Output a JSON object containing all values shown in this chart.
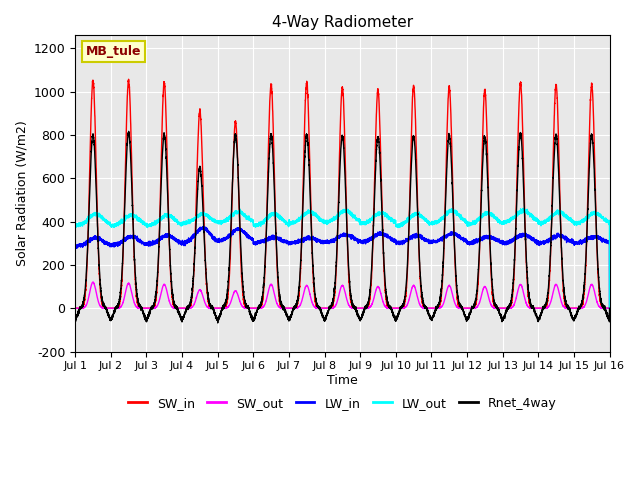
{
  "title": "4-Way Radiometer",
  "xlabel": "Time",
  "ylabel": "Solar Radiation (W/m2)",
  "ylim": [
    -200,
    1260
  ],
  "xlim": [
    0,
    15
  ],
  "x_tick_labels": [
    "Jul 1",
    "Jul 2",
    "Jul 3",
    "Jul 4",
    "Jul 5",
    "Jul 6",
    "Jul 7",
    "Jul 8",
    "Jul 9",
    "Jul 10",
    "Jul 11",
    "Jul 12",
    "Jul 13",
    "Jul 14",
    "Jul 15",
    "Jul 16"
  ],
  "station_label": "MB_tule",
  "colors": {
    "SW_in": "#ff0000",
    "SW_out": "#ff00ff",
    "LW_in": "#0000ff",
    "LW_out": "#00ffff",
    "Rnet_4way": "#000000"
  },
  "background_color": "#ffffff",
  "plot_bg_color": "#e8e8e8",
  "grid_color": "#ffffff",
  "n_days": 15,
  "points_per_day": 480,
  "SW_in_peak": [
    1050,
    1050,
    1040,
    910,
    860,
    1030,
    1040,
    1020,
    1005,
    1025,
    1020,
    1005,
    1040,
    1030,
    1030
  ],
  "SW_out_peak": [
    120,
    115,
    110,
    85,
    80,
    110,
    105,
    105,
    100,
    105,
    105,
    100,
    110,
    110,
    110
  ],
  "LW_in_base": [
    285,
    290,
    295,
    300,
    310,
    300,
    300,
    305,
    305,
    300,
    305,
    300,
    300,
    300,
    300
  ],
  "LW_in_peak": [
    325,
    330,
    335,
    370,
    365,
    325,
    325,
    340,
    345,
    335,
    345,
    330,
    340,
    335,
    330
  ],
  "LW_out_base": [
    380,
    380,
    380,
    390,
    395,
    380,
    390,
    395,
    390,
    380,
    390,
    385,
    395,
    390,
    390
  ],
  "LW_out_peak": [
    435,
    430,
    430,
    435,
    445,
    435,
    445,
    450,
    440,
    435,
    450,
    440,
    450,
    445,
    440
  ],
  "Rnet_peak": [
    800,
    810,
    800,
    650,
    800,
    800,
    800,
    795,
    790,
    795,
    800,
    790,
    805,
    800,
    800
  ],
  "Rnet_night": [
    -100,
    -100,
    -100,
    -100,
    -105,
    -100,
    -100,
    -100,
    -100,
    -100,
    -100,
    -100,
    -100,
    -105,
    -100
  ],
  "yticks": [
    -200,
    0,
    200,
    400,
    600,
    800,
    1000,
    1200
  ]
}
